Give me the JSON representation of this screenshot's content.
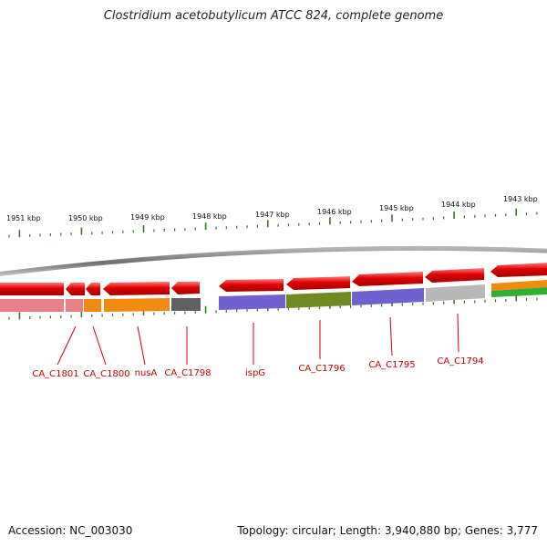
{
  "title": "Clostridium acetobutylicum ATCC 824, complete genome",
  "footer": {
    "accession": "Accession: NC_003030",
    "summary": "Topology: circular; Length: 3,940,880 bp; Genes: 3,777"
  },
  "colors": {
    "backbone": "#8a8a8a",
    "gene_arrow": "#e00000",
    "tick": "#2e7d1e",
    "label": "#cc0000"
  },
  "scale": {
    "unit": "kbp",
    "labels": [
      "1951 kbp",
      "1950 kbp",
      "1949 kbp",
      "1948 kbp",
      "1947 kbp",
      "1946 kbp",
      "1945 kbp",
      "1944 kbp",
      "1943 kbp"
    ]
  },
  "genes": [
    {
      "label": "CA_C1801",
      "color": "#e88088"
    },
    {
      "label": "CA_C1800",
      "color": "#f08a10"
    },
    {
      "label": "nusA",
      "color": "#f08a10"
    },
    {
      "label": "CA_C1798",
      "color": "#606060"
    },
    {
      "label": "ispG",
      "color": "#7060d0"
    },
    {
      "label": "CA_C1796",
      "color": "#6e8a20"
    },
    {
      "label": "CA_C1795",
      "color": "#7060d0"
    },
    {
      "label": "CA_C1794",
      "color": "#b8b8b8"
    }
  ]
}
